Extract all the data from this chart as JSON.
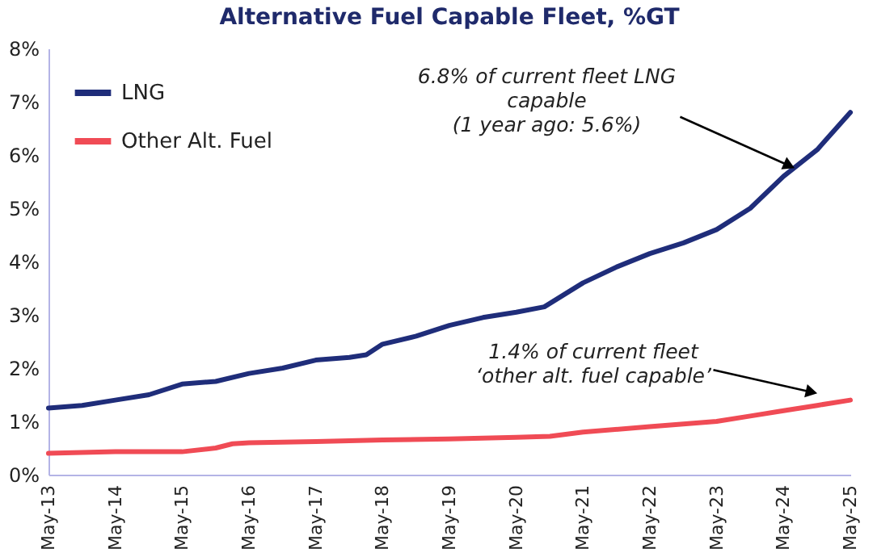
{
  "chart_data": {
    "type": "line",
    "title": "Alternative Fuel Capable Fleet, %GT",
    "xlim": [
      "2013-05",
      "2025-05"
    ],
    "xticks": [
      {
        "value": "2013-05",
        "label": "May-13"
      },
      {
        "value": "2014-05",
        "label": "May-14"
      },
      {
        "value": "2015-05",
        "label": "May-15"
      },
      {
        "value": "2016-05",
        "label": "May-16"
      },
      {
        "value": "2017-05",
        "label": "May-17"
      },
      {
        "value": "2018-05",
        "label": "May-18"
      },
      {
        "value": "2019-05",
        "label": "May-19"
      },
      {
        "value": "2020-05",
        "label": "May-20"
      },
      {
        "value": "2021-05",
        "label": "May-21"
      },
      {
        "value": "2022-05",
        "label": "May-22"
      },
      {
        "value": "2023-05",
        "label": "May-23"
      },
      {
        "value": "2024-05",
        "label": "May-24"
      },
      {
        "value": "2025-05",
        "label": "May-25"
      }
    ],
    "ylim": [
      0,
      8
    ],
    "yticks": [
      {
        "value": 0,
        "label": "0%"
      },
      {
        "value": 1,
        "label": "1%"
      },
      {
        "value": 2,
        "label": "2%"
      },
      {
        "value": 3,
        "label": "3%"
      },
      {
        "value": 4,
        "label": "4%"
      },
      {
        "value": 5,
        "label": "5%"
      },
      {
        "value": 6,
        "label": "6%"
      },
      {
        "value": 7,
        "label": "7%"
      },
      {
        "value": 8,
        "label": "8%"
      }
    ],
    "grid": false,
    "legend": "top left",
    "marker": "none",
    "line_style": "solid",
    "series": [
      {
        "name": "LNG",
        "color": "#1f2d7a",
        "x": [
          "2013-05",
          "2013-11",
          "2014-05",
          "2014-11",
          "2015-05",
          "2015-11",
          "2016-05",
          "2016-11",
          "2017-05",
          "2017-11",
          "2018-02",
          "2018-05",
          "2018-11",
          "2019-05",
          "2019-11",
          "2020-05",
          "2020-10",
          "2021-05",
          "2021-11",
          "2022-05",
          "2022-11",
          "2023-05",
          "2023-11",
          "2024-05",
          "2024-11",
          "2025-05"
        ],
        "values": [
          1.25,
          1.3,
          1.4,
          1.5,
          1.7,
          1.75,
          1.9,
          2.0,
          2.15,
          2.2,
          2.25,
          2.45,
          2.6,
          2.8,
          2.95,
          3.05,
          3.15,
          3.6,
          3.9,
          4.15,
          4.35,
          4.6,
          5.0,
          5.6,
          6.1,
          6.8
        ]
      },
      {
        "name": "Other Alt. Fuel",
        "color": "#f04b55",
        "x": [
          "2013-05",
          "2014-05",
          "2015-05",
          "2015-11",
          "2016-02",
          "2016-05",
          "2017-05",
          "2018-05",
          "2019-05",
          "2020-05",
          "2020-11",
          "2021-05",
          "2022-05",
          "2023-05",
          "2023-11",
          "2024-05",
          "2024-11",
          "2025-05"
        ],
        "values": [
          0.4,
          0.43,
          0.43,
          0.5,
          0.58,
          0.6,
          0.62,
          0.65,
          0.67,
          0.7,
          0.72,
          0.8,
          0.9,
          1.0,
          1.1,
          1.2,
          1.3,
          1.4
        ]
      }
    ],
    "annotations": [
      {
        "text": "6.8% of current fleet LNG\ncapable\n(1 year ago: 5.6%)",
        "x": "2024-06",
        "y": 5.8
      },
      {
        "text": "1.4% of current fleet\n‘other alt. fuel capable’",
        "x": "2024-10",
        "y": 1.55
      }
    ]
  }
}
